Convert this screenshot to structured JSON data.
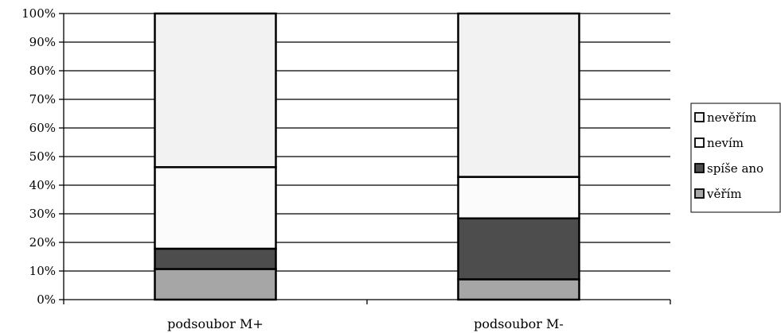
{
  "chart_data": {
    "type": "bar",
    "stacked": true,
    "percent_stacked": true,
    "categories": [
      "podsoubor M+",
      "podsoubor M-"
    ],
    "series": [
      {
        "name": "věřím",
        "values": [
          10.7,
          7.1
        ],
        "color": "#a6a6a6"
      },
      {
        "name": "spíše ano",
        "values": [
          7.1,
          21.3
        ],
        "color": "#4d4d4d"
      },
      {
        "name": "nevím",
        "values": [
          28.5,
          14.5
        ],
        "color": "#fbfbfb"
      },
      {
        "name": "nevěřím",
        "values": [
          53.7,
          57.1
        ],
        "color": "#f2f2f2"
      }
    ],
    "y_ticks": [
      "0%",
      "10%",
      "20%",
      "30%",
      "40%",
      "50%",
      "60%",
      "70%",
      "80%",
      "90%",
      "100%"
    ],
    "ylim": [
      0,
      100
    ],
    "grid": true,
    "legend_position": "right",
    "legend_order": [
      "nevěřím",
      "nevím",
      "spíše ano",
      "věřím"
    ]
  }
}
